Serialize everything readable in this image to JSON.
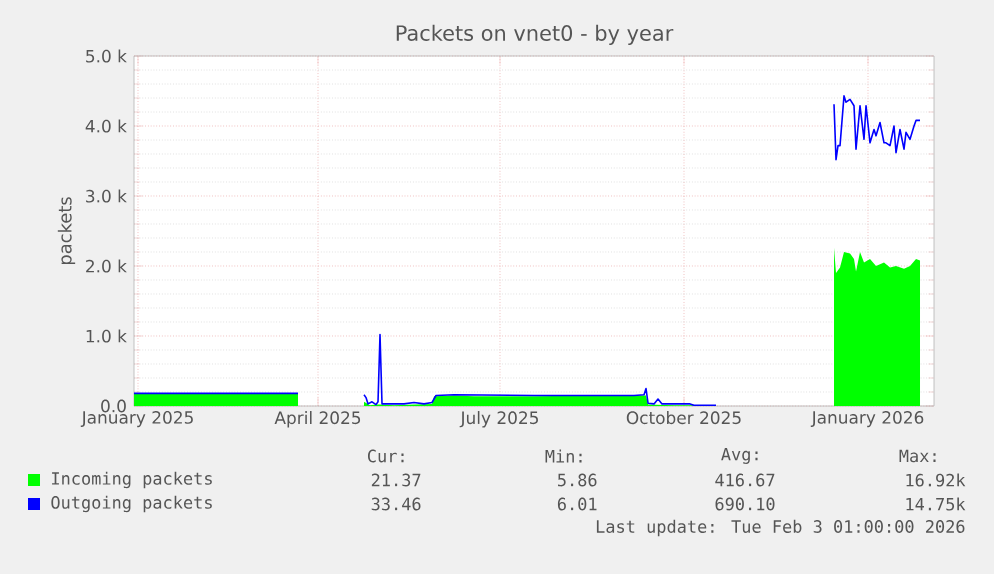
{
  "chart_data": {
    "type": "area",
    "title": "Packets on vnet0 - by year",
    "ylabel": "packets",
    "xlim": [
      "2024-12-30",
      "2026-02-03"
    ],
    "xticks": [
      {
        "value": "2025-01-01",
        "label": "January 2025"
      },
      {
        "value": "2025-04-01",
        "label": "April 2025"
      },
      {
        "value": "2025-07-01",
        "label": "July 2025"
      },
      {
        "value": "2025-10-01",
        "label": "October 2025"
      },
      {
        "value": "2026-01-01",
        "label": "January 2026"
      }
    ],
    "ylim": [
      0,
      5000
    ],
    "yticks": [
      {
        "value": 0,
        "label": "0.0"
      },
      {
        "value": 1000,
        "label": "1.0 k"
      },
      {
        "value": 2000,
        "label": "2.0 k"
      },
      {
        "value": 3000,
        "label": "3.0 k"
      },
      {
        "value": 4000,
        "label": "4.0 k"
      },
      {
        "value": 5000,
        "label": "5.0 k"
      }
    ],
    "grid": true,
    "legend": "bottom",
    "series": [
      {
        "name": "Incoming packets",
        "color": "#00ff00",
        "x": [
          "2024-12-30",
          "2025-01-15",
          "2025-02-15",
          "2025-03-22",
          "2025-03-23",
          "2025-04-24",
          "2025-04-27",
          "2025-04-30",
          "2025-05-02",
          "2025-05-09",
          "2025-05-19",
          "2025-05-28",
          "2025-05-29",
          "2025-06-08",
          "2025-06-18",
          "2025-07-18",
          "2025-08-17",
          "2025-09-12",
          "2025-09-13",
          "2025-09-26",
          "2025-10-04",
          "2025-10-17",
          "2025-10-18",
          "2025-12-15",
          "2025-12-16",
          "2025-12-18",
          "2025-12-20",
          "2025-12-23",
          "2025-12-25",
          "2025-12-26",
          "2025-12-28",
          "2025-12-30",
          "2026-01-02",
          "2026-01-05",
          "2026-01-09",
          "2026-01-12",
          "2026-01-15",
          "2026-01-19",
          "2026-01-22",
          "2026-01-25",
          "2026-01-27"
        ],
        "values": [
          170,
          170,
          170,
          170,
          null,
          60,
          10,
          20,
          20,
          10,
          20,
          30,
          140,
          150,
          140,
          140,
          150,
          150,
          20,
          10,
          10,
          10,
          null,
          2260,
          1900,
          1980,
          2200,
          2180,
          2100,
          1920,
          2200,
          2050,
          2100,
          2000,
          2050,
          1980,
          2000,
          1960,
          2000,
          2100,
          2080
        ]
      },
      {
        "name": "Outgoing packets",
        "type": "line",
        "color": "#0000ff",
        "x": [
          "2024-12-30",
          "2025-01-15",
          "2025-02-15",
          "2025-03-22",
          "2025-03-23",
          "2025-04-24",
          "2025-04-25",
          "2025-04-26",
          "2025-04-28",
          "2025-04-30",
          "2025-05-01",
          "2025-05-02",
          "2025-05-03",
          "2025-05-14",
          "2025-05-19",
          "2025-05-24",
          "2025-05-28",
          "2025-05-30",
          "2025-06-08",
          "2025-07-18",
          "2025-09-06",
          "2025-09-11",
          "2025-09-12",
          "2025-09-13",
          "2025-09-16",
          "2025-09-18",
          "2025-09-20",
          "2025-10-04",
          "2025-10-06",
          "2025-10-17",
          "2025-10-18",
          "2025-12-15",
          "2025-12-16",
          "2025-12-17",
          "2025-12-18",
          "2025-12-20",
          "2025-12-21",
          "2025-12-23",
          "2025-12-25",
          "2025-12-26",
          "2025-12-28",
          "2025-12-30",
          "2025-12-31",
          "2026-01-02",
          "2026-01-04",
          "2026-01-05",
          "2026-01-07",
          "2026-01-09",
          "2026-01-10",
          "2026-01-12",
          "2026-01-14",
          "2026-01-15",
          "2026-01-17",
          "2026-01-19",
          "2026-01-20",
          "2026-01-22",
          "2026-01-24",
          "2026-01-25",
          "2026-01-27"
        ],
        "values": [
          180,
          180,
          180,
          180,
          null,
          160,
          120,
          30,
          60,
          20,
          60,
          1020,
          30,
          30,
          50,
          30,
          50,
          150,
          160,
          150,
          150,
          160,
          250,
          40,
          30,
          100,
          30,
          30,
          10,
          10,
          null,
          4310,
          3520,
          3720,
          3720,
          4430,
          4340,
          4380,
          4290,
          3670,
          4290,
          3810,
          4290,
          3760,
          3950,
          3860,
          4050,
          3760,
          3760,
          3720,
          4000,
          3620,
          3950,
          3670,
          3910,
          3810,
          4000,
          4080,
          4080
        ]
      }
    ],
    "annotations": [
      "Cur:",
      "Min:",
      "Avg:",
      "Max:",
      "21.37",
      "5.86",
      "416.67",
      "16.92k",
      "33.46",
      "6.01",
      "690.10",
      "14.75k",
      "Last update: Tue Feb  3 01:00:00 2026"
    ]
  }
}
